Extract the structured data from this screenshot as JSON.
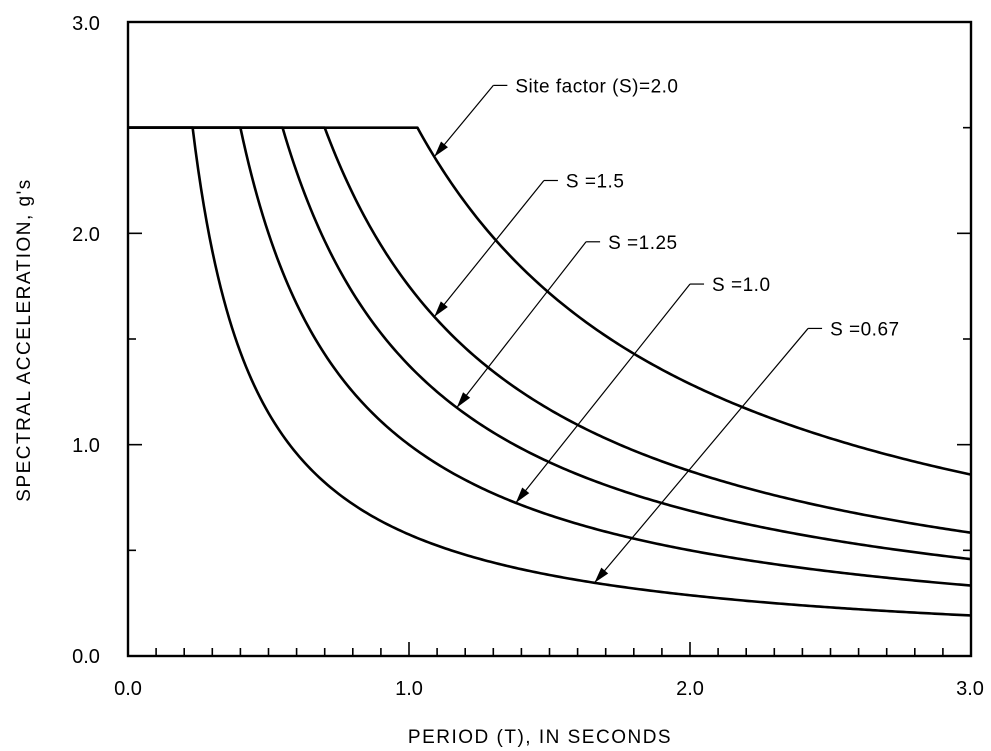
{
  "chart_data": {
    "type": "line",
    "xlabel": "PERIOD (T), IN SECONDS",
    "ylabel": "SPECTRAL ACCELERATION, g's",
    "xlim": [
      0,
      3
    ],
    "ylim": [
      0,
      3
    ],
    "x_tick_labels": [
      "0.0",
      "1.0",
      "2.0",
      "3.0"
    ],
    "y_tick_labels": [
      "0.0",
      "1.0",
      "2.0",
      "3.0"
    ],
    "grid": false,
    "plateau": 2.5,
    "series": [
      {
        "name": "Site factor (S)=2.0",
        "S": 2.0,
        "corner_T": 1.03,
        "label_at_T": 1.09,
        "text_at": [
          1.35,
          2.7
        ]
      },
      {
        "name": "S =1.5",
        "S": 1.5,
        "corner_T": 0.7,
        "label_at_T": 1.09,
        "text_at": [
          1.53,
          2.25
        ]
      },
      {
        "name": "S =1.25",
        "S": 1.25,
        "corner_T": 0.55,
        "label_at_T": 1.17,
        "text_at": [
          1.68,
          1.96
        ]
      },
      {
        "name": "S =1.0",
        "S": 1.0,
        "corner_T": 0.4,
        "label_at_T": 1.38,
        "text_at": [
          2.05,
          1.76
        ]
      },
      {
        "name": "S =0.67",
        "S": 0.67,
        "corner_T": 0.23,
        "label_at_T": 1.66,
        "text_at": [
          2.47,
          1.55
        ]
      }
    ]
  }
}
